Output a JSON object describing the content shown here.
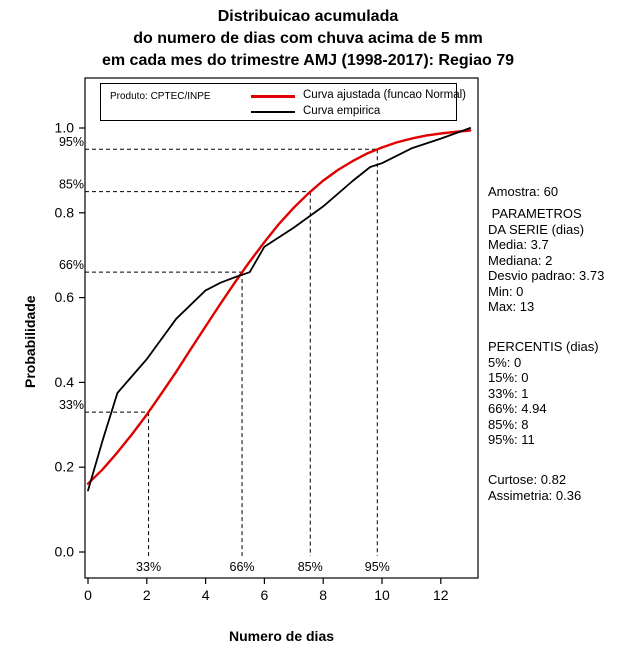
{
  "title": {
    "line1": "Distribuicao acumulada",
    "line2": "do numero de dias com chuva acima de 5 mm",
    "line3": "em cada mes do trimestre AMJ (1998-2017): Regiao 79"
  },
  "legend": {
    "produto": "Produto: CPTEC/INPE",
    "fitted_label": "Curva ajustada (funcao Normal)",
    "empirical_label": "Curva empirica"
  },
  "axes": {
    "xlabel": "Numero de dias",
    "ylabel": "Probabilidade"
  },
  "stats": {
    "group1": [
      "Amostra: 60"
    ],
    "group2": [
      " PARAMETROS",
      "DA SERIE (dias)",
      "Media: 3.7",
      "Mediana: 2",
      "Desvio padrao: 3.73",
      "Min: 0",
      "Max: 13"
    ],
    "group3": [
      "PERCENTIS (dias)",
      "5%: 0",
      "15%: 0",
      "33%: 1",
      "66%: 4.94",
      "85%: 8",
      "95%: 11"
    ],
    "group4": [
      "Curtose: 0.82",
      "Assimetria: 0.36"
    ]
  },
  "chart_data": {
    "type": "line",
    "title": "Distribuicao acumulada do numero de dias com chuva acima de 5 mm em cada mes do trimestre AMJ (1998-2017): Regiao 79",
    "xlabel": "Numero de dias",
    "ylabel": "Probabilidade",
    "xlim": [
      0,
      13
    ],
    "ylim": [
      0,
      1
    ],
    "grid": false,
    "legend_position": "top-inside",
    "x_ticks": [
      0,
      2,
      4,
      6,
      8,
      10,
      12
    ],
    "y_ticks": [
      "0.0",
      "0.2",
      "0.4",
      "0.6",
      "0.8",
      "1.0"
    ],
    "series": [
      {
        "name": "Curva ajustada (funcao Normal)",
        "color": "#e00000",
        "points": [
          [
            0,
            0.161
          ],
          [
            0.5,
            0.195
          ],
          [
            1,
            0.235
          ],
          [
            1.5,
            0.278
          ],
          [
            2,
            0.324
          ],
          [
            2.5,
            0.374
          ],
          [
            3,
            0.425
          ],
          [
            3.5,
            0.479
          ],
          [
            4,
            0.532
          ],
          [
            4.5,
            0.585
          ],
          [
            5,
            0.636
          ],
          [
            5.5,
            0.685
          ],
          [
            6,
            0.731
          ],
          [
            6.5,
            0.774
          ],
          [
            7,
            0.812
          ],
          [
            7.5,
            0.846
          ],
          [
            8,
            0.876
          ],
          [
            8.5,
            0.901
          ],
          [
            9,
            0.922
          ],
          [
            9.5,
            0.94
          ],
          [
            10,
            0.954
          ],
          [
            10.5,
            0.966
          ],
          [
            11,
            0.975
          ],
          [
            11.5,
            0.982
          ],
          [
            12,
            0.987
          ],
          [
            12.5,
            0.991
          ],
          [
            13,
            0.994
          ]
        ]
      },
      {
        "name": "Curva empirica",
        "color": "#000000",
        "points": [
          [
            0,
            0.145
          ],
          [
            0.5,
            0.264
          ],
          [
            1,
            0.375
          ],
          [
            2,
            0.455
          ],
          [
            3,
            0.55
          ],
          [
            4,
            0.617
          ],
          [
            4.5,
            0.635
          ],
          [
            5,
            0.648
          ],
          [
            5.5,
            0.66
          ],
          [
            6,
            0.72
          ],
          [
            7,
            0.765
          ],
          [
            8,
            0.815
          ],
          [
            9,
            0.875
          ],
          [
            9.6,
            0.908
          ],
          [
            10,
            0.917
          ],
          [
            11,
            0.952
          ],
          [
            12,
            0.975
          ],
          [
            13,
            1.0
          ]
        ]
      }
    ],
    "guides": [
      {
        "label": "33%",
        "x": 2.06,
        "p": 0.33
      },
      {
        "label": "66%",
        "x": 5.24,
        "p": 0.66
      },
      {
        "label": "85%",
        "x": 7.56,
        "p": 0.85
      },
      {
        "label": "95%",
        "x": 9.84,
        "p": 0.95
      }
    ],
    "annotations": {
      "sample_size": 60,
      "mean": 3.7,
      "median": 2,
      "sd": 3.73,
      "min": 0,
      "max": 13,
      "percentiles": {
        "5": 0,
        "15": 0,
        "33": 1,
        "66": 4.94,
        "85": 8,
        "95": 11
      },
      "kurtosis": 0.82,
      "skewness": 0.36
    }
  }
}
